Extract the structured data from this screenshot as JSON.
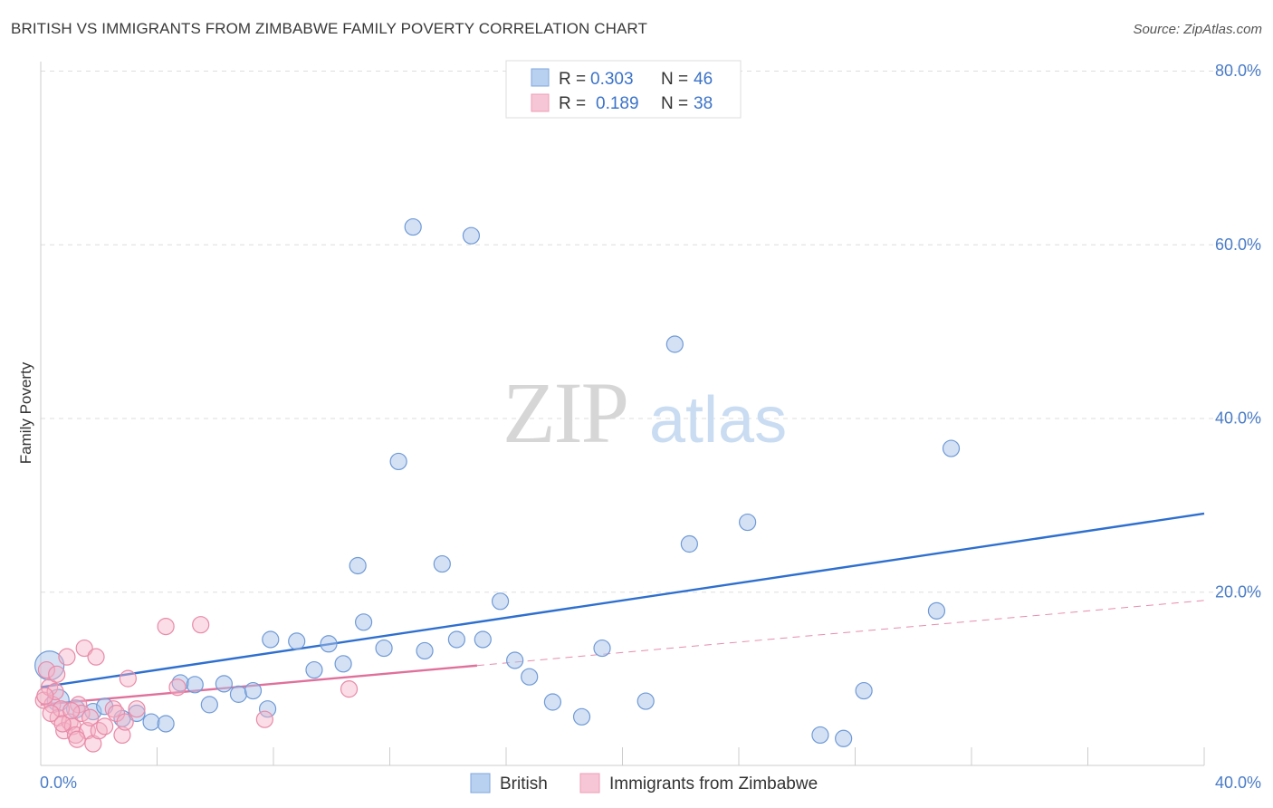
{
  "title": "BRITISH VS IMMIGRANTS FROM ZIMBABWE FAMILY POVERTY CORRELATION CHART",
  "source": "Source: ZipAtlas.com",
  "watermark": {
    "zip": "ZIP",
    "atlas": "atlas"
  },
  "colors": {
    "british_fill": "#a9c4ea",
    "british_stroke": "#6f9ad6",
    "british_line": "#2e6fcf",
    "zim_fill": "#f4b3c8",
    "zim_stroke": "#e88aa8",
    "zim_line": "#e0709a",
    "grid": "#dddddd",
    "tick_text": "#4a7cc7"
  },
  "legend": {
    "rows": [
      {
        "r_label": "R =",
        "r_value": "0.303",
        "n_label": "N =",
        "n_value": "46"
      },
      {
        "r_label": "R =",
        "r_value": "0.189",
        "n_label": "N =",
        "n_value": "38"
      }
    ]
  },
  "chart_data": {
    "type": "scatter",
    "title": "BRITISH VS IMMIGRANTS FROM ZIMBABWE FAMILY POVERTY CORRELATION CHART",
    "xlabel": "",
    "ylabel": "Family Poverty",
    "xlim": [
      0,
      40
    ],
    "ylim": [
      0,
      80
    ],
    "x_tick_labels": [
      "0.0%",
      "40.0%"
    ],
    "y_tick_labels": [
      "20.0%",
      "40.0%",
      "60.0%",
      "80.0%"
    ],
    "y_ticks": [
      20,
      40,
      60,
      80
    ],
    "legend_position": "top-center",
    "series": [
      {
        "name": "British",
        "R": 0.303,
        "N": 46,
        "trend": {
          "x": [
            0,
            40
          ],
          "y": [
            9.0,
            29.0
          ],
          "solid_until": 40
        },
        "points": [
          [
            0.3,
            11.5,
            16
          ],
          [
            0.6,
            7.5,
            12
          ],
          [
            1.2,
            6.5,
            10
          ],
          [
            1.8,
            6.2,
            9
          ],
          [
            2.2,
            6.8,
            9
          ],
          [
            2.8,
            5.4,
            9
          ],
          [
            3.3,
            6.0,
            9
          ],
          [
            3.8,
            5.0,
            9
          ],
          [
            4.3,
            4.8,
            9
          ],
          [
            4.8,
            9.5,
            9
          ],
          [
            5.3,
            9.3,
            9
          ],
          [
            5.8,
            7.0,
            9
          ],
          [
            6.3,
            9.4,
            9
          ],
          [
            6.8,
            8.2,
            9
          ],
          [
            7.3,
            8.6,
            9
          ],
          [
            7.8,
            6.5,
            9
          ],
          [
            7.9,
            14.5,
            9
          ],
          [
            8.8,
            14.3,
            9
          ],
          [
            9.4,
            11.0,
            9
          ],
          [
            9.9,
            14.0,
            9
          ],
          [
            10.4,
            11.7,
            9
          ],
          [
            10.9,
            23.0,
            9
          ],
          [
            11.1,
            16.5,
            9
          ],
          [
            11.8,
            13.5,
            9
          ],
          [
            12.3,
            35.0,
            9
          ],
          [
            12.8,
            62.0,
            9
          ],
          [
            13.2,
            13.2,
            9
          ],
          [
            13.8,
            23.2,
            9
          ],
          [
            14.3,
            14.5,
            9
          ],
          [
            14.8,
            61.0,
            9
          ],
          [
            15.2,
            14.5,
            9
          ],
          [
            15.8,
            18.9,
            9
          ],
          [
            16.3,
            12.1,
            9
          ],
          [
            16.8,
            10.2,
            9
          ],
          [
            17.6,
            7.3,
            9
          ],
          [
            18.6,
            5.6,
            9
          ],
          [
            19.3,
            13.5,
            9
          ],
          [
            20.8,
            7.4,
            9
          ],
          [
            21.8,
            48.5,
            9
          ],
          [
            22.3,
            25.5,
            9
          ],
          [
            24.3,
            28.0,
            9
          ],
          [
            26.8,
            3.5,
            9
          ],
          [
            27.6,
            3.1,
            9
          ],
          [
            28.3,
            8.6,
            9
          ],
          [
            30.8,
            17.8,
            9
          ],
          [
            31.3,
            36.5,
            9
          ]
        ]
      },
      {
        "name": "Immigrants from Zimbabwe",
        "R": 0.189,
        "N": 38,
        "trend": {
          "x": [
            0,
            40
          ],
          "y": [
            7.0,
            19.0
          ],
          "solid_until": 15
        },
        "points": [
          [
            0.1,
            7.5,
            9
          ],
          [
            0.2,
            11.0,
            9
          ],
          [
            0.3,
            9.0,
            9
          ],
          [
            0.4,
            7.0,
            9
          ],
          [
            0.5,
            8.5,
            9
          ],
          [
            0.6,
            5.5,
            9
          ],
          [
            0.7,
            6.5,
            9
          ],
          [
            0.8,
            4.0,
            9
          ],
          [
            0.9,
            12.5,
            9
          ],
          [
            1.0,
            5.0,
            9
          ],
          [
            1.1,
            4.5,
            9
          ],
          [
            1.2,
            3.5,
            9
          ],
          [
            1.3,
            7.0,
            9
          ],
          [
            1.4,
            6.0,
            9
          ],
          [
            1.5,
            13.5,
            9
          ],
          [
            1.6,
            4.0,
            9
          ],
          [
            1.7,
            5.5,
            9
          ],
          [
            1.8,
            2.5,
            9
          ],
          [
            1.9,
            12.5,
            9
          ],
          [
            2.0,
            4.0,
            9
          ],
          [
            2.2,
            4.5,
            9
          ],
          [
            2.5,
            6.5,
            9
          ],
          [
            2.6,
            6.0,
            9
          ],
          [
            2.8,
            3.5,
            9
          ],
          [
            2.9,
            5.0,
            9
          ],
          [
            3.0,
            10.0,
            9
          ],
          [
            3.3,
            6.5,
            9
          ],
          [
            4.3,
            16.0,
            9
          ],
          [
            4.7,
            9.0,
            9
          ],
          [
            5.5,
            16.2,
            9
          ],
          [
            7.7,
            5.3,
            9
          ],
          [
            10.6,
            8.8,
            9
          ],
          [
            0.15,
            8.0,
            9
          ],
          [
            0.35,
            6.0,
            9
          ],
          [
            0.55,
            10.5,
            9
          ],
          [
            0.75,
            4.8,
            9
          ],
          [
            1.05,
            6.3,
            9
          ],
          [
            1.25,
            3.0,
            9
          ]
        ]
      }
    ]
  }
}
